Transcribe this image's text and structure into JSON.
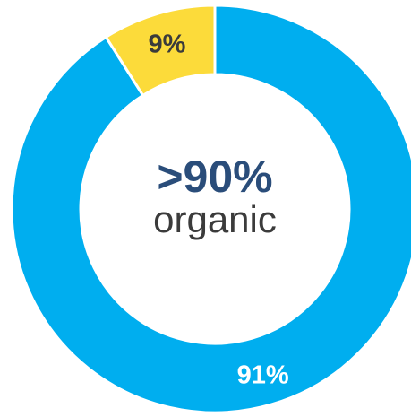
{
  "chart_data": {
    "type": "pie",
    "style": "donut",
    "slices": [
      {
        "label": "91%",
        "value": 91,
        "color": "#00aeef",
        "label_color": "#ffffff"
      },
      {
        "label": "9%",
        "value": 9,
        "color": "#fcdb3a",
        "label_color": "#3b3b3b"
      }
    ],
    "start": "top",
    "direction": "clockwise",
    "separator_color": "#ffffff"
  },
  "center": {
    "headline": ">90%",
    "headline_color": "#2a4d7a",
    "subtext": "organic",
    "subtext_color": "#3b3b3b"
  }
}
